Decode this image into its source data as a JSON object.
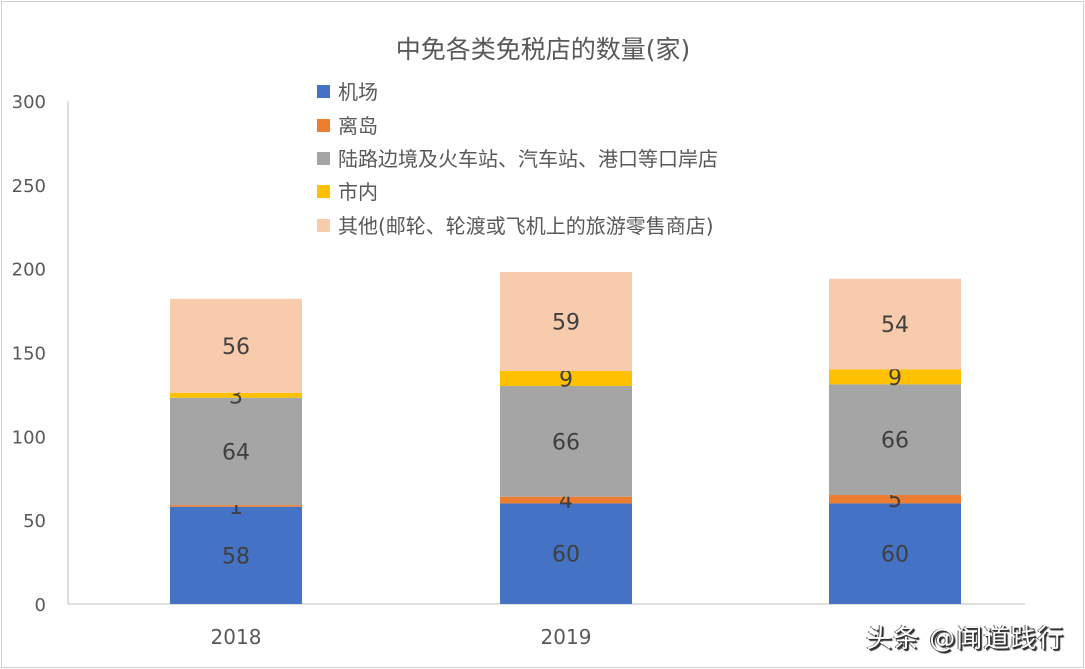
{
  "chart_data": {
    "type": "bar",
    "stacked": true,
    "title": "中免各类免税店的数量(家)",
    "categories": [
      "2018",
      "2019",
      ""
    ],
    "ylim": [
      0,
      300
    ],
    "yticks": [
      0,
      50,
      100,
      150,
      200,
      250,
      300
    ],
    "grid": false,
    "legend_position": "top",
    "series": [
      {
        "name": "机场",
        "values": [
          58,
          60,
          60
        ],
        "color": "#4472C4"
      },
      {
        "name": "离岛",
        "values": [
          1,
          4,
          5
        ],
        "color": "#ED7D31"
      },
      {
        "name": "陆路边境及火车站、汽车站、港口等口岸店",
        "values": [
          64,
          66,
          66
        ],
        "color": "#A5A5A5"
      },
      {
        "name": "市内",
        "values": [
          3,
          9,
          9
        ],
        "color": "#FFC000"
      },
      {
        "name": "其他(邮轮、轮渡或飞机上的旅游零售商店)",
        "values": [
          56,
          59,
          54
        ],
        "color": "#F8CBAD"
      }
    ]
  },
  "watermark": "头条 @闻道践行"
}
